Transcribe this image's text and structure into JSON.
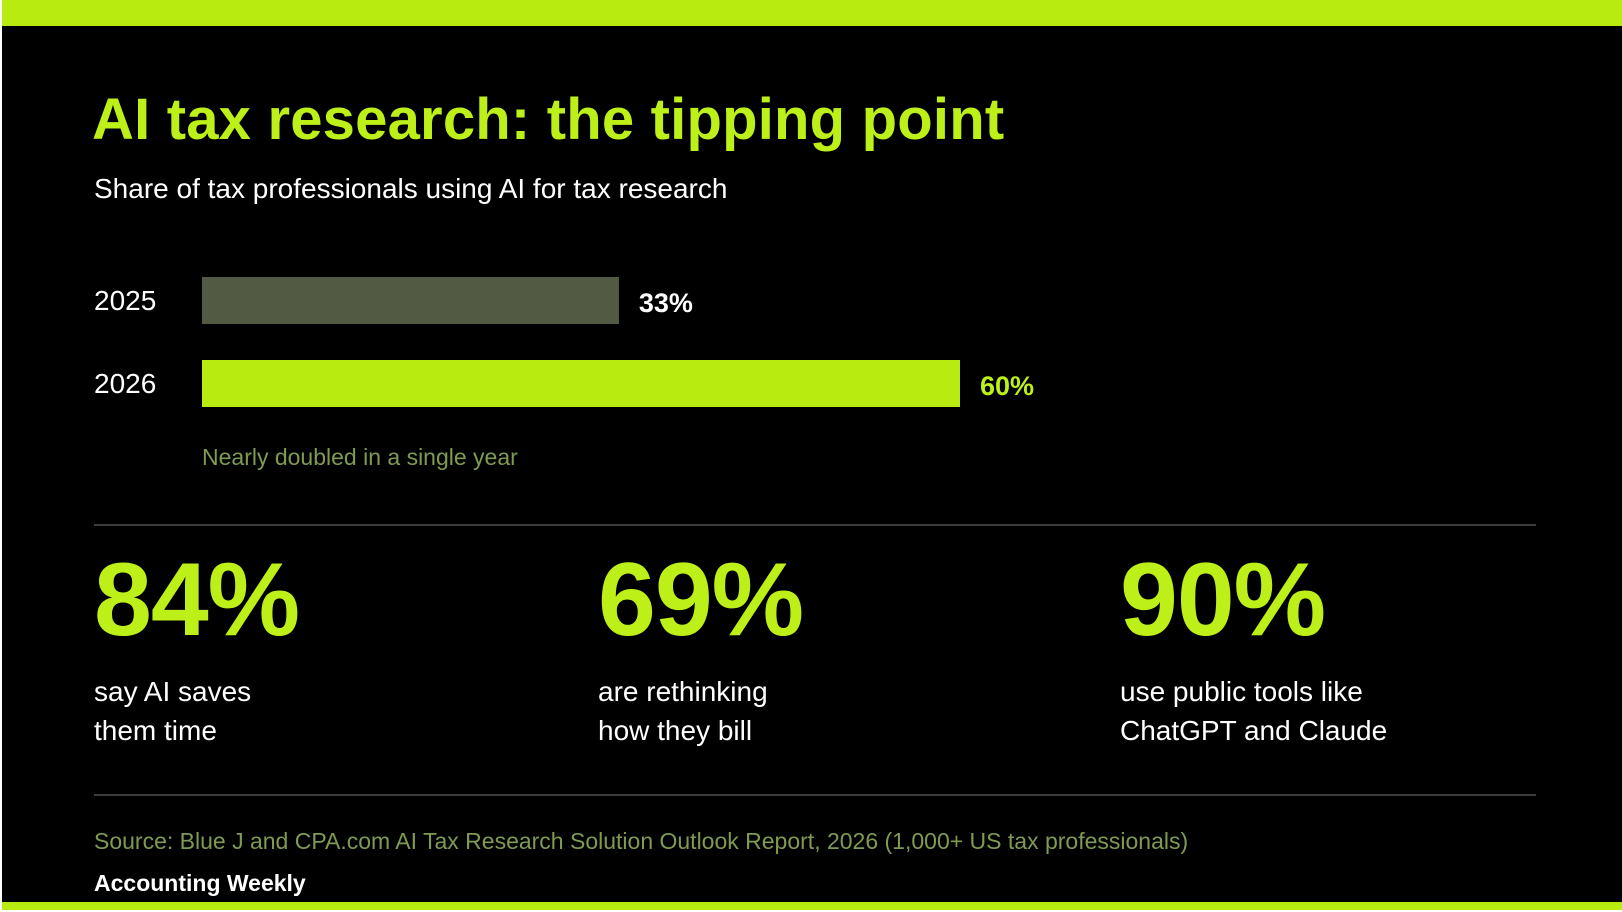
{
  "header": {
    "title": "AI tax research: the tipping point",
    "subtitle": "Share of tax professionals using AI for tax research"
  },
  "colors": {
    "accent": "#bdef19",
    "bar_previous": "#525a44",
    "bar_current": "#b8ec10",
    "muted_text": "#7f9a53",
    "background": "#000000"
  },
  "chart_data": {
    "type": "bar",
    "orientation": "horizontal",
    "categories": [
      "2025",
      "2026"
    ],
    "values": [
      33,
      60
    ],
    "value_labels": [
      "33%",
      "60%"
    ],
    "unit": "%",
    "xlim": [
      0,
      100
    ],
    "grid": false,
    "annotation": "Nearly doubled in a single year"
  },
  "stats": [
    {
      "value": "84%",
      "label": "say AI saves\nthem time"
    },
    {
      "value": "69%",
      "label": "are rethinking\nhow they bill"
    },
    {
      "value": "90%",
      "label": "use public tools like\nChatGPT and Claude"
    }
  ],
  "footer": {
    "source": "Source: Blue J and CPA.com AI Tax Research Solution Outlook Report, 2026 (1,000+ US tax professionals)",
    "brand": "Accounting Weekly"
  }
}
